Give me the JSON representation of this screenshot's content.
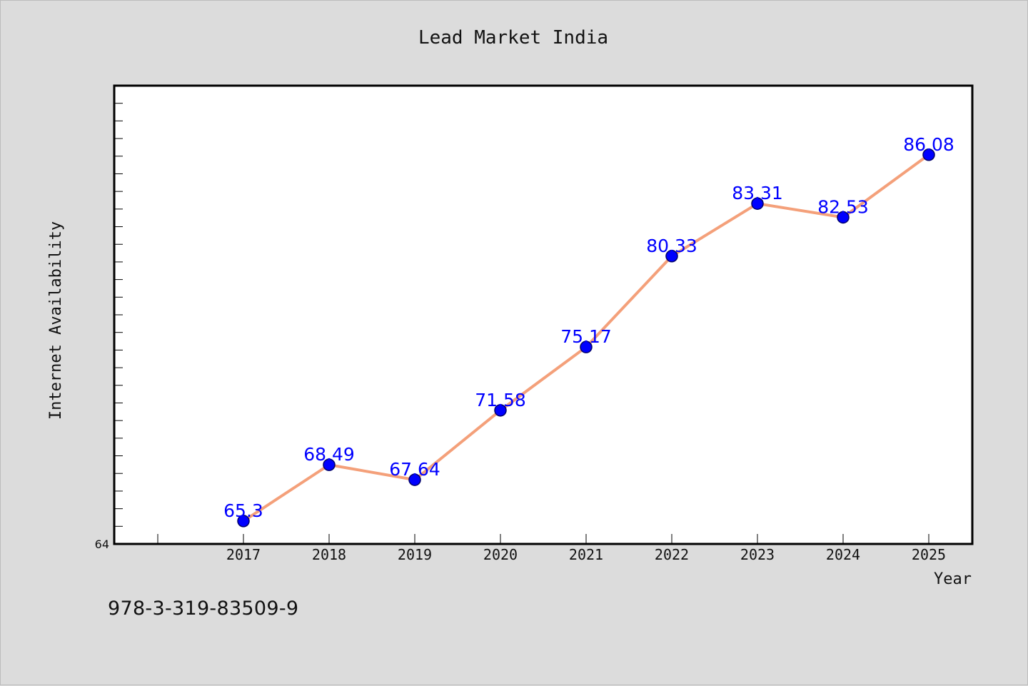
{
  "chart_data": {
    "type": "line",
    "title": "Lead Market India",
    "xlabel": "Year",
    "ylabel": "Internet Availability",
    "categories": [
      "2017",
      "2018",
      "2019",
      "2020",
      "2021",
      "2022",
      "2023",
      "2024",
      "2025"
    ],
    "series": [
      {
        "values": [
          65.3,
          68.49,
          67.64,
          71.58,
          75.17,
          80.33,
          83.31,
          82.53,
          86.08
        ],
        "data_labels": [
          "65.3",
          "68.49",
          "67.64",
          "71.58",
          "75.17",
          "80.33",
          "83.31",
          "82.53",
          "86.08"
        ],
        "line_color": "#f4a07a",
        "marker_color": "#0000ff"
      }
    ],
    "ylim": [
      64,
      90
    ],
    "y_tick_labels": [
      "64"
    ],
    "grid": false,
    "legend": "none"
  },
  "footer": {
    "text": "978-3-319-83509-9"
  },
  "colors": {
    "background": "#dcdcdc",
    "plot_background": "#ffffff",
    "axes_frame": "#000000",
    "data_label": "#0000ff"
  }
}
